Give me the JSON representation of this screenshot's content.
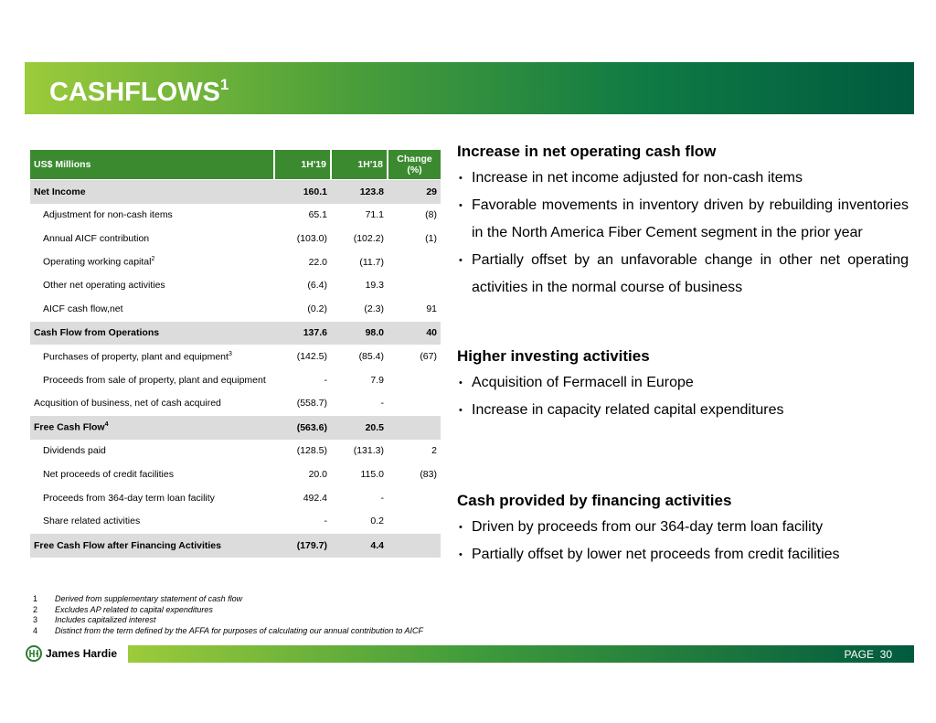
{
  "header": {
    "title": "CASHFLOWS",
    "title_sup": "1"
  },
  "table": {
    "columns": [
      "US$ Millions",
      "1H'19",
      "1H'18",
      "Change (%)"
    ],
    "rows": [
      {
        "label": "Net Income",
        "values": [
          "160.1",
          "123.8"
        ],
        "change": "29",
        "bold": true
      },
      {
        "label": "Adjustment for non-cash items",
        "values": [
          "65.1",
          "71.1"
        ],
        "change": "(8)",
        "level": 1
      },
      {
        "label": "Annual AICF contribution",
        "values": [
          "(103.0)",
          "(102.2)"
        ],
        "change": "(1)",
        "level": 1
      },
      {
        "label": "Operating working capital",
        "sup": "2",
        "values": [
          "22.0",
          "(11.7)"
        ],
        "level": 1
      },
      {
        "label": "Other net operating activities",
        "values": [
          "(6.4)",
          "19.3"
        ],
        "level": 1
      },
      {
        "label": "AICF cash flow,net",
        "values": [
          "(0.2)",
          "(2.3)"
        ],
        "change": "91",
        "level": 1
      },
      {
        "label": "Cash Flow from Operations",
        "values": [
          "137.6",
          "98.0"
        ],
        "change": "40",
        "bold": true
      },
      {
        "label": "Purchases of property, plant and equipment",
        "sup": "3",
        "values": [
          "(142.5)",
          "(85.4)"
        ],
        "change": "(67)",
        "level": 1
      },
      {
        "label": "Proceeds from sale of property, plant and equipment",
        "values": [
          "-",
          "7.9"
        ],
        "level": 1
      },
      {
        "label": "Acqusition of business, net of cash acquired",
        "values": [
          "(558.7)",
          "-"
        ]
      },
      {
        "label": "Free Cash Flow",
        "sup": "4",
        "values": [
          "(563.6)",
          "20.5"
        ],
        "bold": true
      },
      {
        "label": "Dividends paid",
        "values": [
          "(128.5)",
          "(131.3)"
        ],
        "change": "2",
        "level": 1
      },
      {
        "label": "Net proceeds of credit facilities",
        "values": [
          "20.0",
          "115.0"
        ],
        "change": "(83)",
        "level": 1
      },
      {
        "label": "Proceeds from 364-day term loan facility",
        "values": [
          "492.4",
          "-"
        ],
        "level": 1
      },
      {
        "label": "Share related activities",
        "values": [
          "-",
          "0.2"
        ],
        "level": 1
      },
      {
        "label": "Free Cash Flow after Financing Activities",
        "values": [
          "(179.7)",
          "4.4"
        ],
        "bold": true
      }
    ]
  },
  "sections": [
    {
      "heading": "Increase in net operating cash flow",
      "bullets": [
        "Increase in net income adjusted for non-cash items",
        "Favorable movements in inventory driven by rebuilding inventories in the North America Fiber Cement segment in the prior year",
        "Partially offset by an unfavorable change in other net operating activities in the normal course of business"
      ]
    },
    {
      "heading": "Higher investing activities",
      "bullets": [
        "Acquisition of Fermacell in Europe",
        "Increase in capacity related capital expenditures"
      ]
    },
    {
      "heading": "Cash provided by financing activities",
      "bullets": [
        "Driven by proceeds from our 364-day term loan facility",
        "Partially offset by lower net proceeds from credit facilities"
      ]
    }
  ],
  "footnotes": [
    {
      "mark": "1",
      "text": "Derived from supplementary statement of cash flow"
    },
    {
      "mark": "2",
      "text": "Excludes AP related to capital expenditures"
    },
    {
      "mark": "3",
      "text": "Includes capitalized interest"
    },
    {
      "mark": "4",
      "text": "Distinct from the term defined by the AFFA for purposes of calculating our annual contribution to AICF"
    }
  ],
  "footer": {
    "logo": "James Hardie",
    "page_label": "PAGE",
    "page_number": "30"
  }
}
